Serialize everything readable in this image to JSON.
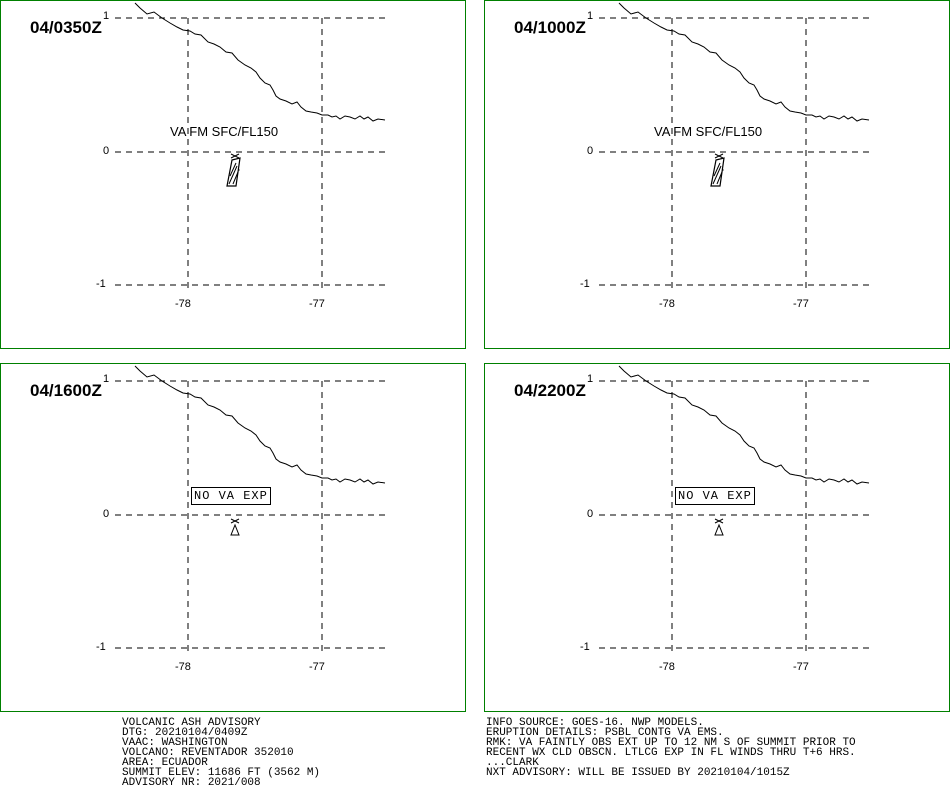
{
  "panels": [
    {
      "time": "04/0350Z",
      "note": "VA FM SFC/FL150",
      "note_boxed": false
    },
    {
      "time": "04/1000Z",
      "note": "VA FM SFC/FL150",
      "note_boxed": false
    },
    {
      "time": "04/1600Z",
      "note": "NO VA EXP",
      "note_boxed": true
    },
    {
      "time": "04/2200Z",
      "note": "NO VA EXP",
      "note_boxed": true
    }
  ],
  "axes": {
    "y_ticks": [
      "1",
      "0",
      "-1"
    ],
    "x_ticks": [
      "-78",
      "-77"
    ]
  },
  "colors": {
    "frame": "#008000",
    "ink": "#000000"
  },
  "advisory_left": [
    "VOLCANIC ASH ADVISORY",
    "DTG: 20210104/0409Z",
    "VAAC: WASHINGTON",
    "VOLCANO: REVENTADOR 352010",
    "AREA: ECUADOR",
    "SUMMIT ELEV: 11686 FT (3562 M)",
    "ADVISORY NR: 2021/008"
  ],
  "advisory_right": [
    "INFO SOURCE: GOES-16. NWP MODELS.",
    "ERUPTION DETAILS: PSBL CONTG VA EMS.",
    "RMK: VA FAINTLY OBS EXT UP TO 12 NM S OF SUMMIT PRIOR TO",
    "RECENT WX CLD OBSCN. LTLCG EXP IN FL WINDS THRU T+6 HRS.",
    "...CLARK",
    "NXT ADVISORY: WILL BE ISSUED BY 20210104/1015Z"
  ]
}
